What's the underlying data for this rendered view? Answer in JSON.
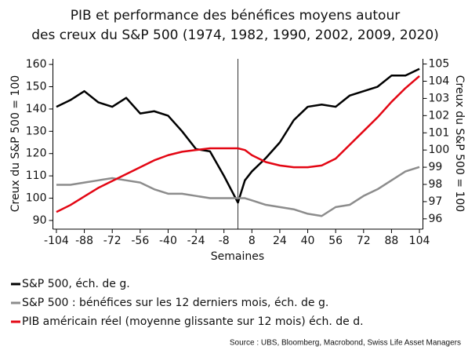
{
  "chart_data": {
    "type": "line",
    "title": "PIB et performance des bénéfices moyens autour",
    "subtitle": "des creux du S&P 500 (1974, 1982, 1990, 2002, 2009, 2020)",
    "x_label": "Semaines",
    "y_label": "Creux du S&P 500 = 100",
    "y2_label": "Creux du S&P 500 = 100",
    "source": "Source : UBS, Bloomberg, Macrobond, Swiss Life Asset Managers",
    "x": [
      -104,
      -96,
      -88,
      -80,
      -72,
      -64,
      -56,
      -48,
      -40,
      -32,
      -24,
      -16,
      -8,
      0,
      4,
      8,
      16,
      24,
      32,
      40,
      48,
      56,
      64,
      72,
      80,
      88,
      96,
      104
    ],
    "series": [
      {
        "name": "S&P 500, éch. de g.",
        "color": "#000000",
        "values": [
          141,
          144,
          148,
          143,
          141,
          145,
          138,
          139,
          137,
          130,
          122,
          121,
          110,
          98,
          108,
          112,
          118,
          125,
          135,
          141,
          142,
          141,
          146,
          148,
          150,
          155,
          155,
          158
        ]
      },
      {
        "name": "S&P 500 : bénéfices sur les 12 derniers mois, éch. de g.",
        "color": "#8c8c8c",
        "values": [
          106,
          106,
          107,
          108,
          109,
          108,
          107,
          104,
          102,
          102,
          101,
          100,
          100,
          100,
          100,
          99,
          97,
          96,
          95,
          93,
          92,
          96,
          97,
          101,
          104,
          108,
          112,
          114
        ]
      },
      {
        "name": "PIB américain réel (moyenne glissante sur 12 mois) éch. de d.",
        "color": "#e30613",
        "axis": "y2",
        "values": [
          96.4,
          96.8,
          97.3,
          97.8,
          98.2,
          98.6,
          99.0,
          99.4,
          99.7,
          99.9,
          100.0,
          100.1,
          100.1,
          100.1,
          100.0,
          99.7,
          99.3,
          99.1,
          99.0,
          99.0,
          99.1,
          99.5,
          100.3,
          101.1,
          101.9,
          102.8,
          103.6,
          104.3
        ]
      }
    ],
    "xlim": [
      -106,
      106
    ],
    "xticks": [
      -104,
      -88,
      -72,
      -56,
      -40,
      -24,
      -8,
      8,
      24,
      40,
      56,
      72,
      88,
      104
    ],
    "ylim": [
      86.1,
      162.5
    ],
    "yticks": [
      90,
      100,
      110,
      120,
      130,
      140,
      150,
      160
    ],
    "y2lim": [
      95.4,
      105.3
    ],
    "y2ticks": [
      96,
      97,
      98,
      99,
      100,
      101,
      102,
      103,
      104,
      105
    ],
    "vline": 0,
    "legend": "bottom"
  }
}
